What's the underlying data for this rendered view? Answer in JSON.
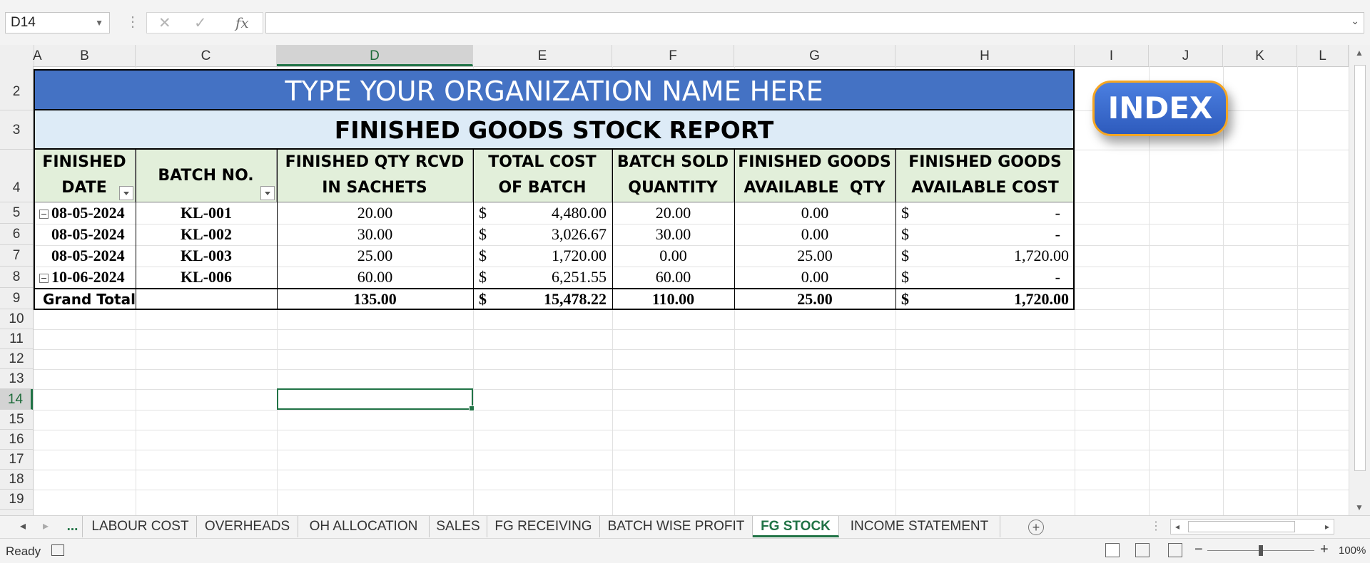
{
  "formula_bar": {
    "name_box": "D14",
    "fx_label": "fx",
    "formula_value": ""
  },
  "columns": [
    "A",
    "B",
    "C",
    "D",
    "E",
    "F",
    "G",
    "H",
    "I",
    "J",
    "K",
    "L"
  ],
  "rows": [
    "2",
    "3",
    "4",
    "5",
    "6",
    "7",
    "8",
    "9",
    "10",
    "11",
    "12",
    "13",
    "14",
    "15",
    "16",
    "17",
    "18",
    "19"
  ],
  "report": {
    "organization": "TYPE YOUR ORGANIZATION NAME HERE",
    "title": "FINISHED GOODS STOCK REPORT",
    "headers": {
      "finished_date": [
        "FINISHED",
        "DATE"
      ],
      "batch_no": "BATCH NO.",
      "qty_rcvd": [
        "FINISHED QTY RCVD",
        "IN SACHETS"
      ],
      "total_cost": [
        "TOTAL COST",
        "OF BATCH"
      ],
      "batch_sold": [
        "BATCH SOLD",
        "QUANTITY"
      ],
      "fg_qty": [
        "FINISHED GOODS",
        "AVAILABLE  QTY"
      ],
      "fg_cost": [
        "FINISHED GOODS",
        "AVAILABLE COST"
      ]
    },
    "currency": "$",
    "rows": [
      {
        "date": "08-05-2024",
        "batch": "KL-001",
        "qty": "20.00",
        "cost": "4,480.00",
        "sold": "20.00",
        "avail_qty": "0.00",
        "avail_cost": "-"
      },
      {
        "date": "08-05-2024",
        "batch": "KL-002",
        "qty": "30.00",
        "cost": "3,026.67",
        "sold": "30.00",
        "avail_qty": "0.00",
        "avail_cost": "-"
      },
      {
        "date": "08-05-2024",
        "batch": "KL-003",
        "qty": "25.00",
        "cost": "1,720.00",
        "sold": "0.00",
        "avail_qty": "25.00",
        "avail_cost": "1,720.00"
      },
      {
        "date": "10-06-2024",
        "batch": "KL-006",
        "qty": "60.00",
        "cost": "6,251.55",
        "sold": "60.00",
        "avail_qty": "0.00",
        "avail_cost": "-"
      }
    ],
    "grand_total": {
      "label": "Grand Total",
      "qty": "135.00",
      "cost": "15,478.22",
      "sold": "110.00",
      "avail_qty": "25.00",
      "avail_cost": "1,720.00"
    }
  },
  "index_button": "INDEX",
  "sheet_tabs": {
    "more": "...",
    "tabs": [
      "LABOUR COST",
      "OVERHEADS",
      "OH ALLOCATION",
      "SALES",
      "FG RECEIVING",
      "BATCH WISE PROFIT",
      "FG STOCK",
      "INCOME STATEMENT"
    ],
    "active": "FG STOCK"
  },
  "status_bar": {
    "status": "Ready",
    "zoom": "100%"
  }
}
